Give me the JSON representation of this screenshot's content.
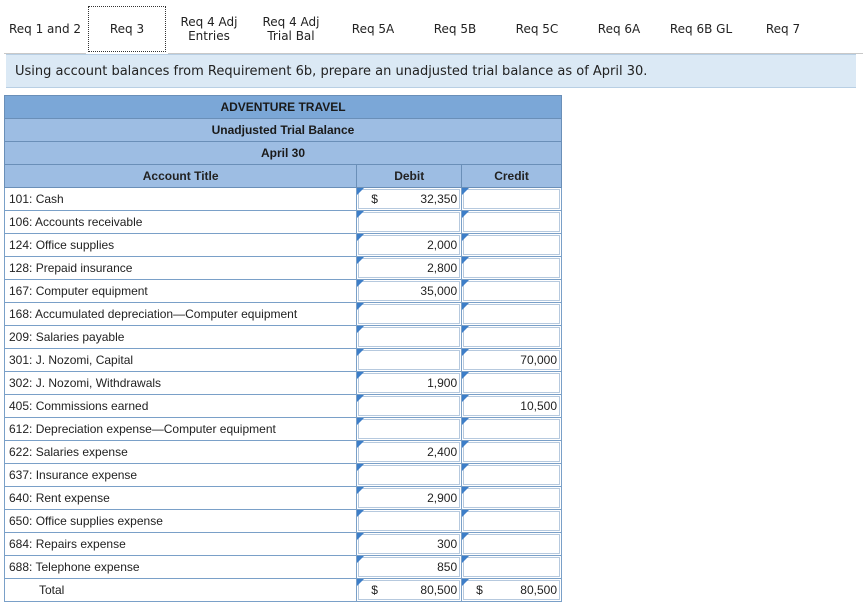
{
  "tabs": [
    {
      "label": "Req 1 and 2",
      "active": false
    },
    {
      "label": "Req 3",
      "active": true
    },
    {
      "label": "Req 4 Adj Entries",
      "active": false
    },
    {
      "label": "Req 4 Adj Trial Bal",
      "active": false
    },
    {
      "label": "Req 5A",
      "active": false
    },
    {
      "label": "Req 5B",
      "active": false
    },
    {
      "label": "Req 5C",
      "active": false
    },
    {
      "label": "Req 6A",
      "active": false
    },
    {
      "label": "Req 6B GL",
      "active": false
    },
    {
      "label": "Req 7",
      "active": false
    }
  ],
  "instruction": "Using account balances from Requirement 6b, prepare an unadjusted trial balance as of April 30.",
  "table": {
    "company": "ADVENTURE TRAVEL",
    "report": "Unadjusted Trial Balance",
    "date": "April 30",
    "col_account": "Account Title",
    "col_debit": "Debit",
    "col_credit": "Credit",
    "rows": [
      {
        "account": "101: Cash",
        "debit": "32,350",
        "credit": "",
        "debit_dollar": "$",
        "credit_dollar": ""
      },
      {
        "account": "106: Accounts receivable",
        "debit": "",
        "credit": "",
        "debit_dollar": "",
        "credit_dollar": ""
      },
      {
        "account": "124: Office supplies",
        "debit": "2,000",
        "credit": "",
        "debit_dollar": "",
        "credit_dollar": ""
      },
      {
        "account": "128: Prepaid insurance",
        "debit": "2,800",
        "credit": "",
        "debit_dollar": "",
        "credit_dollar": ""
      },
      {
        "account": "167: Computer equipment",
        "debit": "35,000",
        "credit": "",
        "debit_dollar": "",
        "credit_dollar": ""
      },
      {
        "account": "168: Accumulated depreciation—Computer equipment",
        "debit": "",
        "credit": "",
        "debit_dollar": "",
        "credit_dollar": ""
      },
      {
        "account": "209: Salaries payable",
        "debit": "",
        "credit": "",
        "debit_dollar": "",
        "credit_dollar": ""
      },
      {
        "account": "301: J. Nozomi, Capital",
        "debit": "",
        "credit": "70,000",
        "debit_dollar": "",
        "credit_dollar": ""
      },
      {
        "account": "302: J. Nozomi, Withdrawals",
        "debit": "1,900",
        "credit": "",
        "debit_dollar": "",
        "credit_dollar": ""
      },
      {
        "account": "405: Commissions earned",
        "debit": "",
        "credit": "10,500",
        "debit_dollar": "",
        "credit_dollar": ""
      },
      {
        "account": "612: Depreciation expense—Computer equipment",
        "debit": "",
        "credit": "",
        "debit_dollar": "",
        "credit_dollar": ""
      },
      {
        "account": "622: Salaries expense",
        "debit": "2,400",
        "credit": "",
        "debit_dollar": "",
        "credit_dollar": ""
      },
      {
        "account": "637: Insurance expense",
        "debit": "",
        "credit": "",
        "debit_dollar": "",
        "credit_dollar": ""
      },
      {
        "account": "640: Rent expense",
        "debit": "2,900",
        "credit": "",
        "debit_dollar": "",
        "credit_dollar": ""
      },
      {
        "account": "650: Office supplies expense",
        "debit": "",
        "credit": "",
        "debit_dollar": "",
        "credit_dollar": ""
      },
      {
        "account": "684: Repairs expense",
        "debit": "300",
        "credit": "",
        "debit_dollar": "",
        "credit_dollar": ""
      },
      {
        "account": "688: Telephone expense",
        "debit": "850",
        "credit": "",
        "debit_dollar": "",
        "credit_dollar": ""
      }
    ],
    "total": {
      "label": "Total",
      "debit_dollar": "$",
      "debit": "80,500",
      "credit_dollar": "$",
      "credit": "80,500"
    }
  }
}
